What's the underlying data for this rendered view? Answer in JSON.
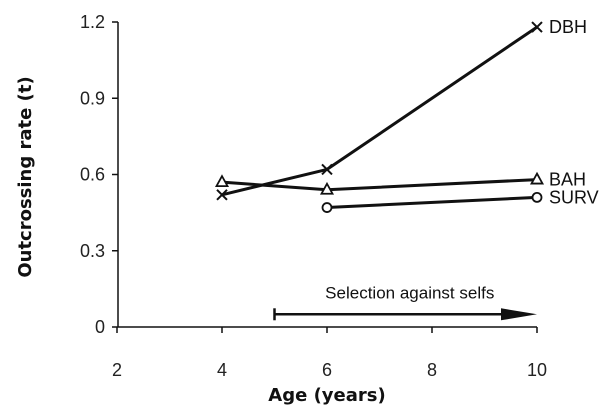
{
  "chart_data": {
    "type": "line",
    "title": "",
    "xlabel": "Age (years)",
    "ylabel": "Outcrossing  rate (t)",
    "xlim": [
      2,
      10
    ],
    "ylim": [
      0,
      1.2
    ],
    "xticks": [
      "2",
      "4",
      "6",
      "8",
      "10"
    ],
    "yticks": [
      "0",
      "0.3",
      "0.6",
      "0.9",
      "1.2"
    ],
    "grid": false,
    "legend": "none",
    "series": [
      {
        "name": "DBH",
        "marker": "x",
        "x": [
          4,
          6,
          10
        ],
        "y": [
          0.52,
          0.62,
          1.18
        ]
      },
      {
        "name": "BAH",
        "marker": "triangle",
        "x": [
          4,
          6,
          10
        ],
        "y": [
          0.57,
          0.54,
          0.58
        ]
      },
      {
        "name": "SURV",
        "marker": "circle",
        "x": [
          6,
          10
        ],
        "y": [
          0.47,
          0.51
        ]
      }
    ],
    "annotations": [
      {
        "text": "Selection against selfs",
        "type": "arrow",
        "x_start": 5,
        "x_end": 10,
        "y": 0.05
      }
    ],
    "colors": {
      "line": "#111111",
      "axis": "#111111"
    }
  }
}
